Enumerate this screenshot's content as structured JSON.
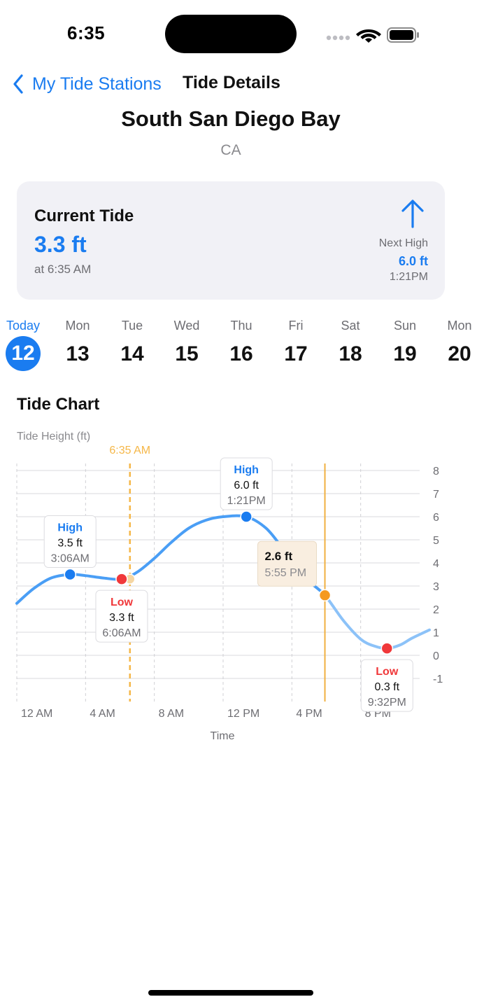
{
  "status": {
    "time": "6:35"
  },
  "nav": {
    "back_label": "My Tide Stations",
    "title": "Tide Details"
  },
  "station": {
    "name": "South San Diego Bay",
    "state": "CA"
  },
  "current": {
    "label": "Current Tide",
    "value": "3.3 ft",
    "time": "at 6:35 AM",
    "next_label": "Next High",
    "next_value": "6.0 ft",
    "next_time": "1:21PM"
  },
  "days": [
    {
      "name": "Today",
      "num": "12",
      "active": true
    },
    {
      "name": "Mon",
      "num": "13"
    },
    {
      "name": "Tue",
      "num": "14"
    },
    {
      "name": "Wed",
      "num": "15"
    },
    {
      "name": "Thu",
      "num": "16"
    },
    {
      "name": "Fri",
      "num": "17"
    },
    {
      "name": "Sat",
      "num": "18"
    },
    {
      "name": "Sun",
      "num": "19"
    },
    {
      "name": "Mon",
      "num": "20"
    }
  ],
  "chart": {
    "title": "Tide Chart"
  },
  "chart_data": {
    "type": "line",
    "ylabel": "Tide Height (ft)",
    "xlabel": "Time",
    "x_ticks": [
      {
        "hour": 0,
        "label": "12 AM"
      },
      {
        "hour": 4,
        "label": "4 AM"
      },
      {
        "hour": 8,
        "label": "8 AM"
      },
      {
        "hour": 12,
        "label": "12 PM"
      },
      {
        "hour": 16,
        "label": "4 PM"
      },
      {
        "hour": 20,
        "label": "8 PM"
      }
    ],
    "xlim": [
      0,
      24
    ],
    "ylim": [
      -2,
      8
    ],
    "y_ticks": [
      8,
      7,
      6,
      5,
      4,
      3,
      2,
      1,
      0,
      -1
    ],
    "series": [
      {
        "points": [
          [
            0,
            2.25
          ],
          [
            1,
            2.9
          ],
          [
            2,
            3.35
          ],
          [
            3.1,
            3.5
          ],
          [
            4,
            3.45
          ],
          [
            5,
            3.35
          ],
          [
            6.1,
            3.3
          ],
          [
            7,
            3.6
          ],
          [
            8,
            4.2
          ],
          [
            9,
            4.9
          ],
          [
            10,
            5.5
          ],
          [
            11,
            5.85
          ],
          [
            12,
            6.0
          ],
          [
            13.35,
            6.0
          ],
          [
            14.5,
            5.5
          ],
          [
            15.5,
            4.6
          ],
          [
            16.5,
            3.7
          ],
          [
            17,
            3.2
          ],
          [
            17.92,
            2.6
          ],
          [
            19,
            1.5
          ],
          [
            20,
            0.7
          ],
          [
            20.8,
            0.4
          ],
          [
            21.53,
            0.3
          ],
          [
            22.3,
            0.45
          ],
          [
            23,
            0.75
          ],
          [
            24,
            1.1
          ]
        ]
      }
    ],
    "extremes": [
      {
        "type": "High",
        "hour": 3.1,
        "value": 3.5,
        "height": "3.5 ft",
        "time": "3:06AM"
      },
      {
        "type": "Low",
        "hour": 6.1,
        "value": 3.3,
        "height": "3.3 ft",
        "time": "6:06AM"
      },
      {
        "type": "High",
        "hour": 13.35,
        "value": 6.0,
        "height": "6.0 ft",
        "time": "1:21PM"
      },
      {
        "type": "Low",
        "hour": 21.53,
        "value": 0.3,
        "height": "0.3 ft",
        "time": "9:32PM"
      }
    ],
    "now": {
      "hour": 6.58,
      "label": "6:35 AM"
    },
    "selected": {
      "hour": 17.92,
      "value": 2.6,
      "height": "2.6 ft",
      "time": "5:55 PM"
    }
  },
  "colors": {
    "accent": "#1a7cf0",
    "curve": "#4a9ef5",
    "low": "#f0383a",
    "now_line": "#f5b748",
    "selected": "#f5991f",
    "tooltip_bg": "#f9eee0"
  }
}
